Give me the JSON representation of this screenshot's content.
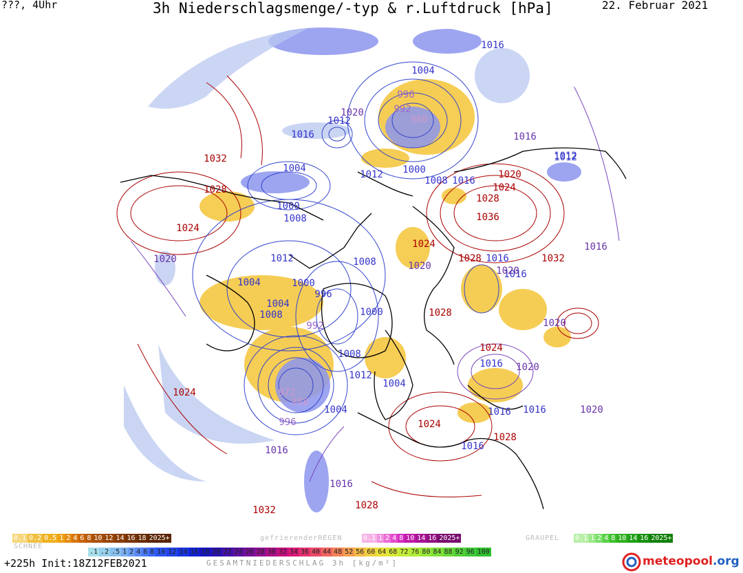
{
  "header": {
    "left": "???, 4Uhr",
    "title": "3h Niederschlagsmenge/-typ & r.Luftdruck [hPa]",
    "date": "22. Februar 2021"
  },
  "pressure_labels": [
    {
      "text": "1016",
      "color": "#3333cc"
    },
    {
      "text": "1004",
      "color": "#3333cc"
    },
    {
      "text": "996",
      "color": "#9966cc"
    },
    {
      "text": "992",
      "color": "#9966cc"
    },
    {
      "text": "980",
      "color": "#cc99cc"
    },
    {
      "text": "1020",
      "color": "#6633aa"
    },
    {
      "text": "1012",
      "color": "#3333cc"
    },
    {
      "text": "1016",
      "color": "#3333cc"
    },
    {
      "text": "1016",
      "color": "#6633aa"
    },
    {
      "text": "1012",
      "color": "#3333cc"
    },
    {
      "text": "1032",
      "color": "#aa0000"
    },
    {
      "text": "1004",
      "color": "#3333cc"
    },
    {
      "text": "1012",
      "color": "#3333cc"
    },
    {
      "text": "1000",
      "color": "#3333cc"
    },
    {
      "text": "1008",
      "color": "#3333cc"
    },
    {
      "text": "1016",
      "color": "#3333cc"
    },
    {
      "text": "1020",
      "color": "#aa0000"
    },
    {
      "text": "1024",
      "color": "#aa0000"
    },
    {
      "text": "1028",
      "color": "#aa0000"
    },
    {
      "text": "1028",
      "color": "#aa0000"
    },
    {
      "text": "1000",
      "color": "#3333cc"
    },
    {
      "text": "1008",
      "color": "#3333cc"
    },
    {
      "text": "1036",
      "color": "#aa0000"
    },
    {
      "text": "1024",
      "color": "#aa0000"
    },
    {
      "text": "1024",
      "color": "#aa0000"
    },
    {
      "text": "1016",
      "color": "#6633aa"
    },
    {
      "text": "1020",
      "color": "#6633aa"
    },
    {
      "text": "1028",
      "color": "#aa0000"
    },
    {
      "text": "1032",
      "color": "#aa0000"
    },
    {
      "text": "1016",
      "color": "#3333cc"
    },
    {
      "text": "1016",
      "color": "#3333cc"
    },
    {
      "text": "1012",
      "color": "#3333cc"
    },
    {
      "text": "1008",
      "color": "#3333cc"
    },
    {
      "text": "1004",
      "color": "#3333cc"
    },
    {
      "text": "1000",
      "color": "#3333cc"
    },
    {
      "text": "996",
      "color": "#3333cc"
    },
    {
      "text": "1004",
      "color": "#3333cc"
    },
    {
      "text": "1008",
      "color": "#3333cc"
    },
    {
      "text": "992",
      "color": "#9966cc"
    },
    {
      "text": "1000",
      "color": "#3333cc"
    },
    {
      "text": "1020",
      "color": "#6633aa"
    },
    {
      "text": "1020",
      "color": "#6633aa"
    },
    {
      "text": "1028",
      "color": "#aa0000"
    },
    {
      "text": "1024",
      "color": "#aa0000"
    },
    {
      "text": "1016",
      "color": "#3333cc"
    },
    {
      "text": "1020",
      "color": "#6633aa"
    },
    {
      "text": "1008",
      "color": "#3333cc"
    },
    {
      "text": "1012",
      "color": "#3333cc"
    },
    {
      "text": "1004",
      "color": "#3333cc"
    },
    {
      "text": "972",
      "color": "#cc99cc"
    },
    {
      "text": "988",
      "color": "#cc99cc"
    },
    {
      "text": "996",
      "color": "#9966cc"
    },
    {
      "text": "1004",
      "color": "#3333cc"
    },
    {
      "text": "1024",
      "color": "#aa0000"
    },
    {
      "text": "1016",
      "color": "#6633aa"
    },
    {
      "text": "1016",
      "color": "#6633aa"
    },
    {
      "text": "1032",
      "color": "#aa0000"
    },
    {
      "text": "1024",
      "color": "#aa0000"
    },
    {
      "text": "1016",
      "color": "#3333cc"
    },
    {
      "text": "1016",
      "color": "#3333cc"
    },
    {
      "text": "1020",
      "color": "#6633aa"
    },
    {
      "text": "1028",
      "color": "#aa0000"
    },
    {
      "text": "1016",
      "color": "#3333cc"
    },
    {
      "text": "1028",
      "color": "#aa0000"
    },
    {
      "text": "1020",
      "color": "#6633aa"
    },
    {
      "text": "1012",
      "color": "#3333cc"
    }
  ],
  "legend": {
    "snow_label": "SCHNEE",
    "snow_values": [
      "0.1",
      "0.2",
      "0.5",
      "1",
      "2",
      "4",
      "6",
      "8",
      "10",
      "12",
      "14",
      "16",
      "18",
      "2025+"
    ],
    "snow_colors": [
      "#f6d67a",
      "#f0c040",
      "#f0b020",
      "#eea010",
      "#e58a10",
      "#d8760c",
      "#c8640a",
      "#b85a08",
      "#a85008",
      "#984606",
      "#883c06",
      "#783406",
      "#682c04",
      "#5a2404"
    ],
    "freezing_label": "gefrierenderREGEN",
    "freezing_values": [
      "0.1",
      "1",
      "2",
      "4",
      "8",
      "10",
      "14",
      "16",
      "2025+"
    ],
    "freezing_colors": [
      "#f7b3e6",
      "#f190de",
      "#ea6ed5",
      "#e24ccc",
      "#d42ac0",
      "#c01aa8",
      "#a81494",
      "#901080",
      "#780c6c"
    ],
    "graupel_label": "GRAUPEL",
    "graupel_values": [
      "0.1",
      "1",
      "2",
      "4",
      "8",
      "10",
      "14",
      "16",
      "2025+"
    ],
    "graupel_colors": [
      "#b8f0a8",
      "#98e888",
      "#78e068",
      "#58d048",
      "#40c030",
      "#30b020",
      "#20a018",
      "#189010",
      "#108008"
    ],
    "total_values": [
      ".1",
      ".2",
      ".5",
      "1",
      "2",
      "4",
      "6",
      "8",
      "10",
      "12",
      "14",
      "16",
      "18",
      "20",
      "22",
      "24",
      "26",
      "28",
      "30",
      "32",
      "34",
      "36",
      "40",
      "44",
      "48",
      "52",
      "56",
      "60",
      "64",
      "68",
      "72",
      "76",
      "80",
      "84",
      "88",
      "92",
      "96",
      "100"
    ],
    "total_colors": [
      "#a8e0ea",
      "#98d0ec",
      "#88c0ee",
      "#78aef0",
      "#6a9cf2",
      "#5a8af4",
      "#4a78f4",
      "#3a66f4",
      "#2a54f2",
      "#2244e8",
      "#1a34de",
      "#1224d4",
      "#1616c0",
      "#2a10b0",
      "#4410a8",
      "#5e10a0",
      "#781098",
      "#921090",
      "#ac1088",
      "#c41080",
      "#d81878",
      "#e43070",
      "#ea4a68",
      "#f06660",
      "#f48258",
      "#f49e50",
      "#f4ba48",
      "#f0d040",
      "#e8e038",
      "#d8e838",
      "#c4ec38",
      "#b0ec38",
      "#98e838",
      "#80e038",
      "#68d838",
      "#50d038",
      "#40c838",
      "#30c030"
    ],
    "total_label": "GESAMTNIEDERSCHLAG 3h [kg/m²]"
  },
  "footer": {
    "forecast": "+225h Init:18Z12FEB2021",
    "brand_prefix": "meteo",
    "brand_main": "pool",
    "brand_suffix": ".org"
  },
  "colors": {
    "high_isobar": "#aa0000",
    "low_isobar": "#3333cc",
    "mid_isobar": "#6633aa",
    "snow_fill": "#f5c842",
    "rain_fill": "#9aa6f0",
    "coast": "#000000"
  }
}
